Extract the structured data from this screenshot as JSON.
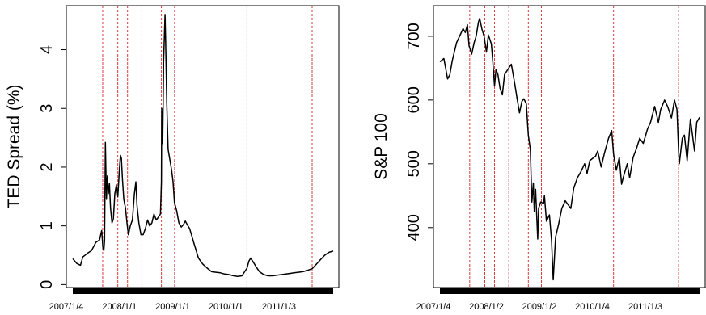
{
  "chart_data": [
    {
      "type": "line",
      "ylabel": "TED Spread (%)",
      "xlabel": "",
      "ylim": [
        -0.05,
        4.75
      ],
      "y_ticks": [
        0,
        1,
        2,
        3,
        4
      ],
      "x_tick_labels": [
        "2007/1/4",
        "2008/1/1",
        "2009/1/1",
        "2010/1/1",
        "2011/1/3"
      ],
      "x_range": [
        "2007/1/4",
        "2011/12/30"
      ],
      "vertical_lines": [
        "2007/8/1",
        "2007/11/15",
        "2008/1/22",
        "2008/5/1",
        "2008/9/15",
        "2008/12/16",
        "2010/5/6",
        "2011/8/5"
      ],
      "vertical_line_color": "#d62728",
      "line_color": "#000000",
      "series": [
        {
          "points": [
            [
              "2007/1/4",
              0.44
            ],
            [
              "2007/2/1",
              0.36
            ],
            [
              "2007/2/27",
              0.33
            ],
            [
              "2007/3/15",
              0.47
            ],
            [
              "2007/4/15",
              0.53
            ],
            [
              "2007/5/15",
              0.58
            ],
            [
              "2007/6/15",
              0.72
            ],
            [
              "2007/7/10",
              0.76
            ],
            [
              "2007/7/25",
              0.92
            ],
            [
              "2007/8/3",
              0.62
            ],
            [
              "2007/8/9",
              0.58
            ],
            [
              "2007/8/14",
              0.75
            ],
            [
              "2007/8/20",
              2.42
            ],
            [
              "2007/8/27",
              1.45
            ],
            [
              "2007/9/3",
              1.85
            ],
            [
              "2007/9/10",
              1.55
            ],
            [
              "2007/9/17",
              1.72
            ],
            [
              "2007/9/25",
              1.3
            ],
            [
              "2007/10/5",
              1.05
            ],
            [
              "2007/10/15",
              1.12
            ],
            [
              "2007/10/25",
              1.55
            ],
            [
              "2007/11/5",
              1.7
            ],
            [
              "2007/11/15",
              1.5
            ],
            [
              "2007/11/26",
              1.95
            ],
            [
              "2007/12/3",
              2.2
            ],
            [
              "2007/12/10",
              2.15
            ],
            [
              "2007/12/17",
              1.8
            ],
            [
              "2007/12/27",
              1.45
            ],
            [
              "2008/1/8",
              1.3
            ],
            [
              "2008/1/18",
              1.05
            ],
            [
              "2008/1/28",
              0.85
            ],
            [
              "2008/2/10",
              1.0
            ],
            [
              "2008/2/25",
              1.1
            ],
            [
              "2008/3/10",
              1.55
            ],
            [
              "2008/3/20",
              1.75
            ],
            [
              "2008/3/28",
              1.35
            ],
            [
              "2008/4/10",
              1.05
            ],
            [
              "2008/4/25",
              0.85
            ],
            [
              "2008/5/10",
              0.85
            ],
            [
              "2008/5/25",
              0.95
            ],
            [
              "2008/6/10",
              1.1
            ],
            [
              "2008/6/25",
              1.0
            ],
            [
              "2008/7/10",
              1.05
            ],
            [
              "2008/7/25",
              1.2
            ],
            [
              "2008/8/10",
              1.1
            ],
            [
              "2008/8/25",
              1.15
            ],
            [
              "2008/9/8",
              1.2
            ],
            [
              "2008/9/15",
              1.75
            ],
            [
              "2008/9/17",
              3.0
            ],
            [
              "2008/9/24",
              2.4
            ],
            [
              "2008/9/30",
              3.8
            ],
            [
              "2008/10/6",
              4.25
            ],
            [
              "2008/10/10",
              4.6
            ],
            [
              "2008/10/15",
              4.1
            ],
            [
              "2008/10/22",
              3.1
            ],
            [
              "2008/11/1",
              2.3
            ],
            [
              "2008/11/15",
              2.1
            ],
            [
              "2008/11/25",
              1.95
            ],
            [
              "2008/12/5",
              1.75
            ],
            [
              "2008/12/15",
              1.4
            ],
            [
              "2008/12/31",
              1.25
            ],
            [
              "2009/1/15",
              1.05
            ],
            [
              "2009/2/1",
              0.98
            ],
            [
              "2009/2/15",
              1.02
            ],
            [
              "2009/3/1",
              1.08
            ],
            [
              "2009/3/15",
              1.02
            ],
            [
              "2009/4/1",
              0.95
            ],
            [
              "2009/5/1",
              0.7
            ],
            [
              "2009/6/1",
              0.45
            ],
            [
              "2009/7/1",
              0.35
            ],
            [
              "2009/8/1",
              0.28
            ],
            [
              "2009/9/1",
              0.22
            ],
            [
              "2009/10/1",
              0.21
            ],
            [
              "2009/11/1",
              0.2
            ],
            [
              "2009/12/1",
              0.18
            ],
            [
              "2010/1/1",
              0.17
            ],
            [
              "2010/2/1",
              0.15
            ],
            [
              "2010/3/1",
              0.14
            ],
            [
              "2010/4/1",
              0.15
            ],
            [
              "2010/5/6",
              0.28
            ],
            [
              "2010/5/20",
              0.4
            ],
            [
              "2010/6/1",
              0.45
            ],
            [
              "2010/6/20",
              0.38
            ],
            [
              "2010/7/10",
              0.3
            ],
            [
              "2010/8/1",
              0.22
            ],
            [
              "2010/9/1",
              0.17
            ],
            [
              "2010/10/1",
              0.15
            ],
            [
              "2010/11/1",
              0.15
            ],
            [
              "2010/12/1",
              0.16
            ],
            [
              "2011/1/3",
              0.17
            ],
            [
              "2011/2/1",
              0.18
            ],
            [
              "2011/3/1",
              0.19
            ],
            [
              "2011/4/1",
              0.2
            ],
            [
              "2011/5/1",
              0.21
            ],
            [
              "2011/6/1",
              0.22
            ],
            [
              "2011/7/1",
              0.24
            ],
            [
              "2011/8/5",
              0.27
            ],
            [
              "2011/9/1",
              0.34
            ],
            [
              "2011/10/1",
              0.42
            ],
            [
              "2011/11/1",
              0.5
            ],
            [
              "2011/12/1",
              0.55
            ],
            [
              "2011/12/30",
              0.57
            ]
          ]
        }
      ]
    },
    {
      "type": "line",
      "ylabel": "S&P 100",
      "xlabel": "",
      "ylim": [
        306,
        748
      ],
      "y_ticks": [
        400,
        500,
        600,
        700
      ],
      "x_tick_labels": [
        "2007/1/4",
        "2008/1/2",
        "2009/1/2",
        "2010/1/4",
        "2011/1/3"
      ],
      "x_range": [
        "2007/1/4",
        "2011/12/30"
      ],
      "vertical_lines": [
        "2007/8/1",
        "2007/11/15",
        "2008/1/22",
        "2008/5/1",
        "2008/9/15",
        "2008/12/16",
        "2010/5/6",
        "2011/8/5"
      ],
      "vertical_line_color": "#d62728",
      "line_color": "#000000",
      "series": [
        {
          "points": [
            [
              "2007/1/4",
              660
            ],
            [
              "2007/2/1",
              665
            ],
            [
              "2007/2/27",
              633
            ],
            [
              "2007/3/15",
              640
            ],
            [
              "2007/4/1",
              662
            ],
            [
              "2007/5/1",
              690
            ],
            [
              "2007/6/1",
              705
            ],
            [
              "2007/6/15",
              712
            ],
            [
              "2007/7/1",
              706
            ],
            [
              "2007/7/16",
              718
            ],
            [
              "2007/7/27",
              685
            ],
            [
              "2007/8/15",
              672
            ],
            [
              "2007/9/1",
              690
            ],
            [
              "2007/9/15",
              700
            ],
            [
              "2007/10/1",
              722
            ],
            [
              "2007/10/10",
              728
            ],
            [
              "2007/10/25",
              712
            ],
            [
              "2007/11/10",
              700
            ],
            [
              "2007/11/26",
              675
            ],
            [
              "2007/12/10",
              702
            ],
            [
              "2007/12/31",
              688
            ],
            [
              "2008/1/10",
              660
            ],
            [
              "2008/1/22",
              622
            ],
            [
              "2008/2/1",
              648
            ],
            [
              "2008/2/15",
              640
            ],
            [
              "2008/3/1",
              618
            ],
            [
              "2008/3/17",
              608
            ],
            [
              "2008/4/1",
              640
            ],
            [
              "2008/5/1",
              650
            ],
            [
              "2008/5/19",
              656
            ],
            [
              "2008/6/10",
              628
            ],
            [
              "2008/6/30",
              600
            ],
            [
              "2008/7/15",
              580
            ],
            [
              "2008/8/1",
              598
            ],
            [
              "2008/8/15",
              602
            ],
            [
              "2008/9/1",
              594
            ],
            [
              "2008/9/15",
              545
            ],
            [
              "2008/9/29",
              522
            ],
            [
              "2008/10/10",
              440
            ],
            [
              "2008/10/20",
              470
            ],
            [
              "2008/10/27",
              425
            ],
            [
              "2008/11/5",
              460
            ],
            [
              "2008/11/20",
              382
            ],
            [
              "2008/11/26",
              430
            ],
            [
              "2008/12/10",
              440
            ],
            [
              "2008/12/31",
              438
            ],
            [
              "2009/1/6",
              450
            ],
            [
              "2009/1/20",
              410
            ],
            [
              "2009/2/10",
              420
            ],
            [
              "2009/2/25",
              380
            ],
            [
              "2009/3/9",
              318
            ],
            [
              "2009/3/25",
              385
            ],
            [
              "2009/4/15",
              405
            ],
            [
              "2009/5/8",
              430
            ],
            [
              "2009/6/1",
              442
            ],
            [
              "2009/7/10",
              430
            ],
            [
              "2009/7/31",
              462
            ],
            [
              "2009/8/25",
              478
            ],
            [
              "2009/9/20",
              488
            ],
            [
              "2009/10/15",
              500
            ],
            [
              "2009/11/1",
              485
            ],
            [
              "2009/11/20",
              505
            ],
            [
              "2009/12/31",
              512
            ],
            [
              "2010/1/15",
              520
            ],
            [
              "2010/2/8",
              495
            ],
            [
              "2010/3/1",
              515
            ],
            [
              "2010/4/1",
              540
            ],
            [
              "2010/4/23",
              552
            ],
            [
              "2010/5/6",
              515
            ],
            [
              "2010/5/25",
              490
            ],
            [
              "2010/6/15",
              510
            ],
            [
              "2010/7/1",
              468
            ],
            [
              "2010/7/15",
              480
            ],
            [
              "2010/8/10",
              500
            ],
            [
              "2010/8/27",
              478
            ],
            [
              "2010/9/20",
              510
            ],
            [
              "2010/10/15",
              525
            ],
            [
              "2010/11/5",
              540
            ],
            [
              "2010/11/30",
              532
            ],
            [
              "2010/12/31",
              555
            ],
            [
              "2011/1/20",
              565
            ],
            [
              "2011/2/18",
              590
            ],
            [
              "2011/3/16",
              565
            ],
            [
              "2011/4/1",
              585
            ],
            [
              "2011/4/29",
              600
            ],
            [
              "2011/5/20",
              590
            ],
            [
              "2011/6/16",
              572
            ],
            [
              "2011/7/7",
              600
            ],
            [
              "2011/7/25",
              585
            ],
            [
              "2011/8/5",
              520
            ],
            [
              "2011/8/10",
              500
            ],
            [
              "2011/8/31",
              540
            ],
            [
              "2011/9/15",
              545
            ],
            [
              "2011/10/4",
              505
            ],
            [
              "2011/10/27",
              570
            ],
            [
              "2011/11/25",
              520
            ],
            [
              "2011/12/10",
              565
            ],
            [
              "2011/12/30",
              573
            ]
          ]
        }
      ]
    }
  ]
}
